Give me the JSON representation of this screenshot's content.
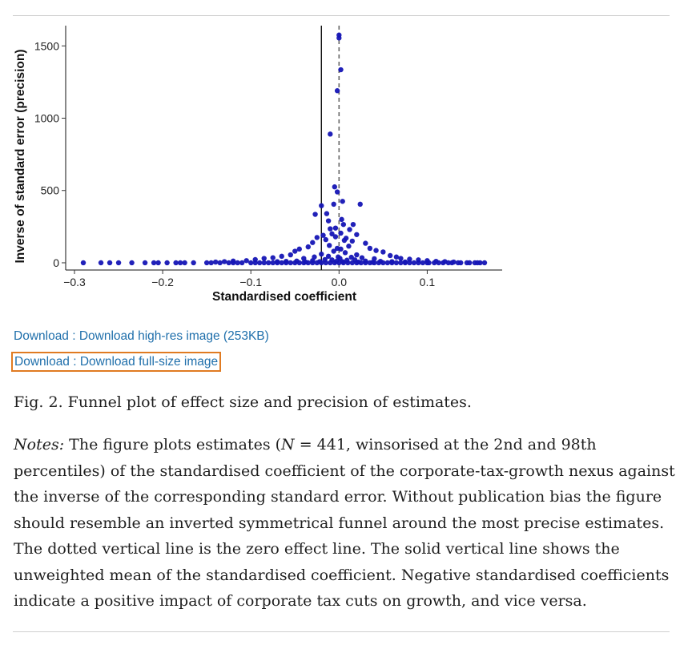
{
  "downloads": {
    "high_res": "Download : Download high-res image (253KB)",
    "full_size": "Download : Download full-size image"
  },
  "caption": "Fig. 2. Funnel plot of effect size and precision of estimates.",
  "notes": {
    "label": "Notes:",
    "lead": "The figure plots estimates (",
    "math_var": "N",
    "math_rel": " = 441",
    "rest": ", winsorised at the 2nd and 98th percentiles) of the standardised coefficient of the corporate-tax-growth nexus against the inverse of the corresponding standard error. Without publication bias the figure should resemble an inverted symmetrical funnel around the most precise estimates. The dotted vertical line is the zero effect line. The solid vertical line shows the unweighted mean of the standardised coefficient. Negative standardised coefficients indicate a positive impact of corporate tax cuts on growth, and vice versa."
  },
  "chart_data": {
    "type": "scatter",
    "xlabel": "Standardised coefficient",
    "ylabel": "Inverse of standard error (precision)",
    "xlim": [
      -0.31,
      0.185
    ],
    "ylim": [
      -50,
      1640
    ],
    "xticks": [
      -0.3,
      -0.2,
      -0.1,
      0.0,
      0.1
    ],
    "xtick_labels": [
      "−0.3",
      "−0.2",
      "−0.1",
      "0.0",
      "0.1"
    ],
    "yticks": [
      0,
      500,
      1000,
      1500
    ],
    "ytick_labels": [
      "0",
      "500",
      "1000",
      "1500"
    ],
    "grid": false,
    "point_color": "#1515b5",
    "reference_lines": [
      {
        "x": 0.0,
        "style": "dashed",
        "meaning": "zero effect line"
      },
      {
        "x": -0.02,
        "style": "solid",
        "meaning": "unweighted mean"
      }
    ],
    "points": [
      [
        0.0,
        1555
      ],
      [
        0.0,
        1575
      ],
      [
        0.002,
        1335
      ],
      [
        -0.002,
        1190
      ],
      [
        -0.01,
        890
      ],
      [
        -0.005,
        525
      ],
      [
        -0.002,
        490
      ],
      [
        0.004,
        425
      ],
      [
        -0.006,
        405
      ],
      [
        0.024,
        405
      ],
      [
        -0.02,
        395
      ],
      [
        -0.027,
        335
      ],
      [
        -0.014,
        340
      ],
      [
        0.003,
        300
      ],
      [
        -0.012,
        290
      ],
      [
        0.016,
        265
      ],
      [
        -0.01,
        235
      ],
      [
        0.005,
        265
      ],
      [
        -0.004,
        240
      ],
      [
        0.012,
        230
      ],
      [
        -0.008,
        200
      ],
      [
        0.002,
        205
      ],
      [
        -0.018,
        190
      ],
      [
        0.02,
        195
      ],
      [
        -0.025,
        175
      ],
      [
        0.008,
        170
      ],
      [
        -0.015,
        160
      ],
      [
        0.015,
        150
      ],
      [
        -0.03,
        140
      ],
      [
        0.03,
        135
      ],
      [
        -0.004,
        180
      ],
      [
        0.006,
        155
      ],
      [
        -0.011,
        120
      ],
      [
        0.011,
        115
      ],
      [
        -0.035,
        110
      ],
      [
        0.035,
        100
      ],
      [
        -0.045,
        95
      ],
      [
        0.042,
        85
      ],
      [
        -0.05,
        80
      ],
      [
        0.05,
        75
      ],
      [
        -0.002,
        100
      ],
      [
        0.002,
        95
      ],
      [
        -0.006,
        80
      ],
      [
        0.007,
        70
      ],
      [
        -0.02,
        60
      ],
      [
        0.02,
        55
      ],
      [
        -0.055,
        55
      ],
      [
        0.058,
        50
      ],
      [
        -0.065,
        45
      ],
      [
        0.065,
        40
      ],
      [
        -0.075,
        35
      ],
      [
        0.07,
        30
      ],
      [
        -0.085,
        30
      ],
      [
        0.08,
        25
      ],
      [
        -0.095,
        22
      ],
      [
        0.09,
        20
      ],
      [
        -0.105,
        15
      ],
      [
        0.1,
        15
      ],
      [
        -0.12,
        12
      ],
      [
        0.11,
        10
      ],
      [
        -0.13,
        8
      ],
      [
        0.12,
        8
      ],
      [
        -0.14,
        5
      ],
      [
        0.13,
        5
      ],
      [
        -0.001,
        40
      ],
      [
        0.001,
        30
      ],
      [
        -0.012,
        45
      ],
      [
        0.014,
        38
      ],
      [
        -0.028,
        40
      ],
      [
        0.026,
        35
      ],
      [
        -0.04,
        30
      ],
      [
        0.04,
        28
      ],
      [
        -0.008,
        20
      ],
      [
        0.009,
        18
      ],
      [
        -0.016,
        22
      ],
      [
        0.018,
        20
      ],
      [
        -0.03,
        15
      ],
      [
        0.03,
        12
      ],
      [
        -0.048,
        12
      ],
      [
        0.047,
        10
      ],
      [
        -0.06,
        10
      ],
      [
        0.06,
        8
      ],
      [
        -0.07,
        8
      ],
      [
        0.075,
        6
      ],
      [
        -0.003,
        10
      ],
      [
        0.004,
        8
      ],
      [
        -0.022,
        8
      ],
      [
        0.022,
        5
      ],
      [
        -0.038,
        5
      ],
      [
        0.038,
        3
      ],
      [
        -0.27,
        0
      ],
      [
        -0.25,
        0
      ],
      [
        -0.235,
        0
      ],
      [
        -0.22,
        0
      ],
      [
        -0.21,
        0
      ],
      [
        -0.195,
        0
      ],
      [
        -0.185,
        0
      ],
      [
        -0.175,
        0
      ],
      [
        -0.165,
        0
      ],
      [
        -0.15,
        0
      ],
      [
        -0.135,
        0
      ],
      [
        -0.12,
        0
      ],
      [
        -0.11,
        0
      ],
      [
        -0.1,
        0
      ],
      [
        -0.09,
        0
      ],
      [
        -0.08,
        0
      ],
      [
        -0.07,
        0
      ],
      [
        -0.06,
        0
      ],
      [
        -0.05,
        0
      ],
      [
        -0.04,
        0
      ],
      [
        -0.03,
        0
      ],
      [
        -0.02,
        0
      ],
      [
        -0.01,
        0
      ],
      [
        0.0,
        0
      ],
      [
        0.01,
        0
      ],
      [
        0.02,
        0
      ],
      [
        0.03,
        0
      ],
      [
        0.04,
        0
      ],
      [
        0.05,
        0
      ],
      [
        0.06,
        0
      ],
      [
        0.07,
        0
      ],
      [
        0.08,
        0
      ],
      [
        0.09,
        0
      ],
      [
        0.1,
        0
      ],
      [
        0.108,
        0
      ],
      [
        0.118,
        0
      ],
      [
        0.128,
        0
      ],
      [
        0.138,
        0
      ],
      [
        0.148,
        0
      ],
      [
        0.157,
        0
      ],
      [
        0.165,
        0
      ],
      [
        -0.29,
        0
      ],
      [
        -0.26,
        0
      ],
      [
        -0.205,
        0
      ],
      [
        -0.18,
        0
      ],
      [
        -0.145,
        0
      ],
      [
        -0.125,
        0
      ],
      [
        -0.095,
        0
      ],
      [
        -0.075,
        0
      ],
      [
        -0.055,
        0
      ],
      [
        -0.035,
        0
      ],
      [
        -0.015,
        0
      ],
      [
        0.005,
        0
      ],
      [
        0.025,
        0
      ],
      [
        0.045,
        0
      ],
      [
        0.065,
        0
      ],
      [
        0.085,
        0
      ],
      [
        0.102,
        0
      ],
      [
        0.124,
        0
      ],
      [
        0.145,
        0
      ],
      [
        0.16,
        0
      ],
      [
        0.154,
        0
      ],
      [
        0.135,
        0
      ],
      [
        -0.115,
        0
      ],
      [
        -0.085,
        0
      ],
      [
        -0.065,
        0
      ],
      [
        -0.045,
        0
      ],
      [
        -0.025,
        0
      ],
      [
        -0.005,
        0
      ],
      [
        0.015,
        0
      ],
      [
        0.035,
        0
      ],
      [
        0.055,
        0
      ],
      [
        0.075,
        0
      ],
      [
        0.095,
        0
      ],
      [
        0.113,
        0
      ]
    ]
  }
}
